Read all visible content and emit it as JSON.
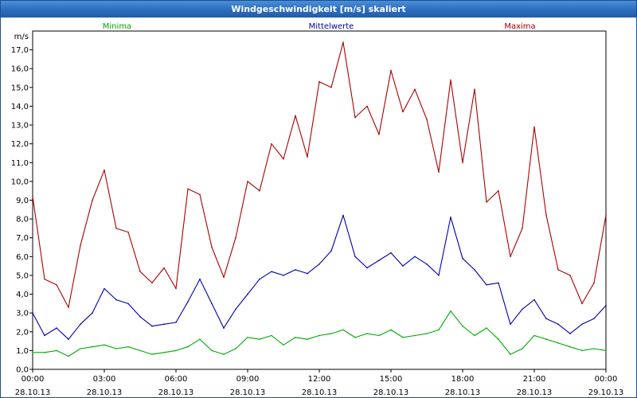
{
  "window": {
    "title": "Windgeschwindigkeit [m/s] skaliert"
  },
  "chart_data": {
    "type": "line",
    "title": "Windgeschwindigkeit [m/s] skaliert",
    "ylabel": "m/s",
    "xlabel": "",
    "ylim": [
      0,
      18
    ],
    "xlim": [
      0,
      24
    ],
    "grid": true,
    "legend_placement": "top",
    "yticks": [
      "0,0",
      "1,0",
      "2,0",
      "3,0",
      "4,0",
      "5,0",
      "6,0",
      "7,0",
      "8,0",
      "9,0",
      "10,0",
      "11,0",
      "12,0",
      "13,0",
      "14,0",
      "15,0",
      "16,0",
      "17,0"
    ],
    "xticks": [
      {
        "time": "00:00",
        "date": "28.10.13"
      },
      {
        "time": "03:00",
        "date": "28.10.13"
      },
      {
        "time": "06:00",
        "date": "28.10.13"
      },
      {
        "time": "09:00",
        "date": "28.10.13"
      },
      {
        "time": "12:00",
        "date": "28.10.13"
      },
      {
        "time": "15:00",
        "date": "28.10.13"
      },
      {
        "time": "18:00",
        "date": "28.10.13"
      },
      {
        "time": "21:00",
        "date": "28.10.13"
      },
      {
        "time": "00:00",
        "date": "29.10.13"
      }
    ],
    "x_hours": [
      0,
      0.5,
      1,
      1.5,
      2,
      2.5,
      3,
      3.5,
      4,
      4.5,
      5,
      5.5,
      6,
      6.5,
      7,
      7.5,
      8,
      8.5,
      9,
      9.5,
      10,
      10.5,
      11,
      11.5,
      12,
      12.5,
      13,
      13.5,
      14,
      14.5,
      15,
      15.5,
      16,
      16.5,
      17,
      17.5,
      18,
      18.5,
      19,
      19.5,
      20,
      20.5,
      21,
      21.5,
      22,
      22.5,
      23,
      23.5,
      24
    ],
    "series": [
      {
        "name": "Minima",
        "color": "#00aa00",
        "values": [
          0.9,
          0.9,
          1.0,
          0.7,
          1.1,
          1.2,
          1.3,
          1.1,
          1.2,
          1.0,
          0.8,
          0.9,
          1.0,
          1.2,
          1.6,
          1.0,
          0.8,
          1.1,
          1.7,
          1.6,
          1.8,
          1.3,
          1.7,
          1.6,
          1.8,
          1.9,
          2.1,
          1.7,
          1.9,
          1.8,
          2.1,
          1.7,
          1.8,
          1.9,
          2.1,
          3.1,
          2.3,
          1.8,
          2.2,
          1.6,
          0.8,
          1.1,
          1.8,
          1.6,
          1.4,
          1.2,
          1.0,
          1.1,
          1.0
        ]
      },
      {
        "name": "Mittelwerte",
        "color": "#0000aa",
        "values": [
          3.0,
          1.8,
          2.2,
          1.6,
          2.4,
          3.0,
          4.3,
          3.7,
          3.5,
          2.8,
          2.3,
          2.4,
          2.5,
          3.6,
          4.8,
          3.5,
          2.2,
          3.2,
          4.0,
          4.8,
          5.2,
          5.0,
          5.3,
          5.1,
          5.6,
          6.3,
          8.2,
          6.0,
          5.4,
          5.8,
          6.2,
          5.5,
          6.0,
          5.6,
          5.0,
          8.1,
          5.9,
          5.3,
          4.5,
          4.6,
          2.4,
          3.2,
          3.7,
          2.7,
          2.4,
          1.9,
          2.4,
          2.7,
          3.4
        ]
      },
      {
        "name": "Maxima",
        "color": "#aa0000",
        "values": [
          9.2,
          4.8,
          4.5,
          3.3,
          6.6,
          9.0,
          10.6,
          7.5,
          7.3,
          5.2,
          4.6,
          5.4,
          4.3,
          9.6,
          9.3,
          6.5,
          4.9,
          7.0,
          10.0,
          9.5,
          12.0,
          11.2,
          13.5,
          11.3,
          15.3,
          15.0,
          17.4,
          13.4,
          14.0,
          12.5,
          15.9,
          13.7,
          14.9,
          13.3,
          10.5,
          15.4,
          11.0,
          14.9,
          8.9,
          9.5,
          6.0,
          7.5,
          12.9,
          8.2,
          5.3,
          5.0,
          3.5,
          4.6,
          8.2
        ]
      }
    ]
  }
}
